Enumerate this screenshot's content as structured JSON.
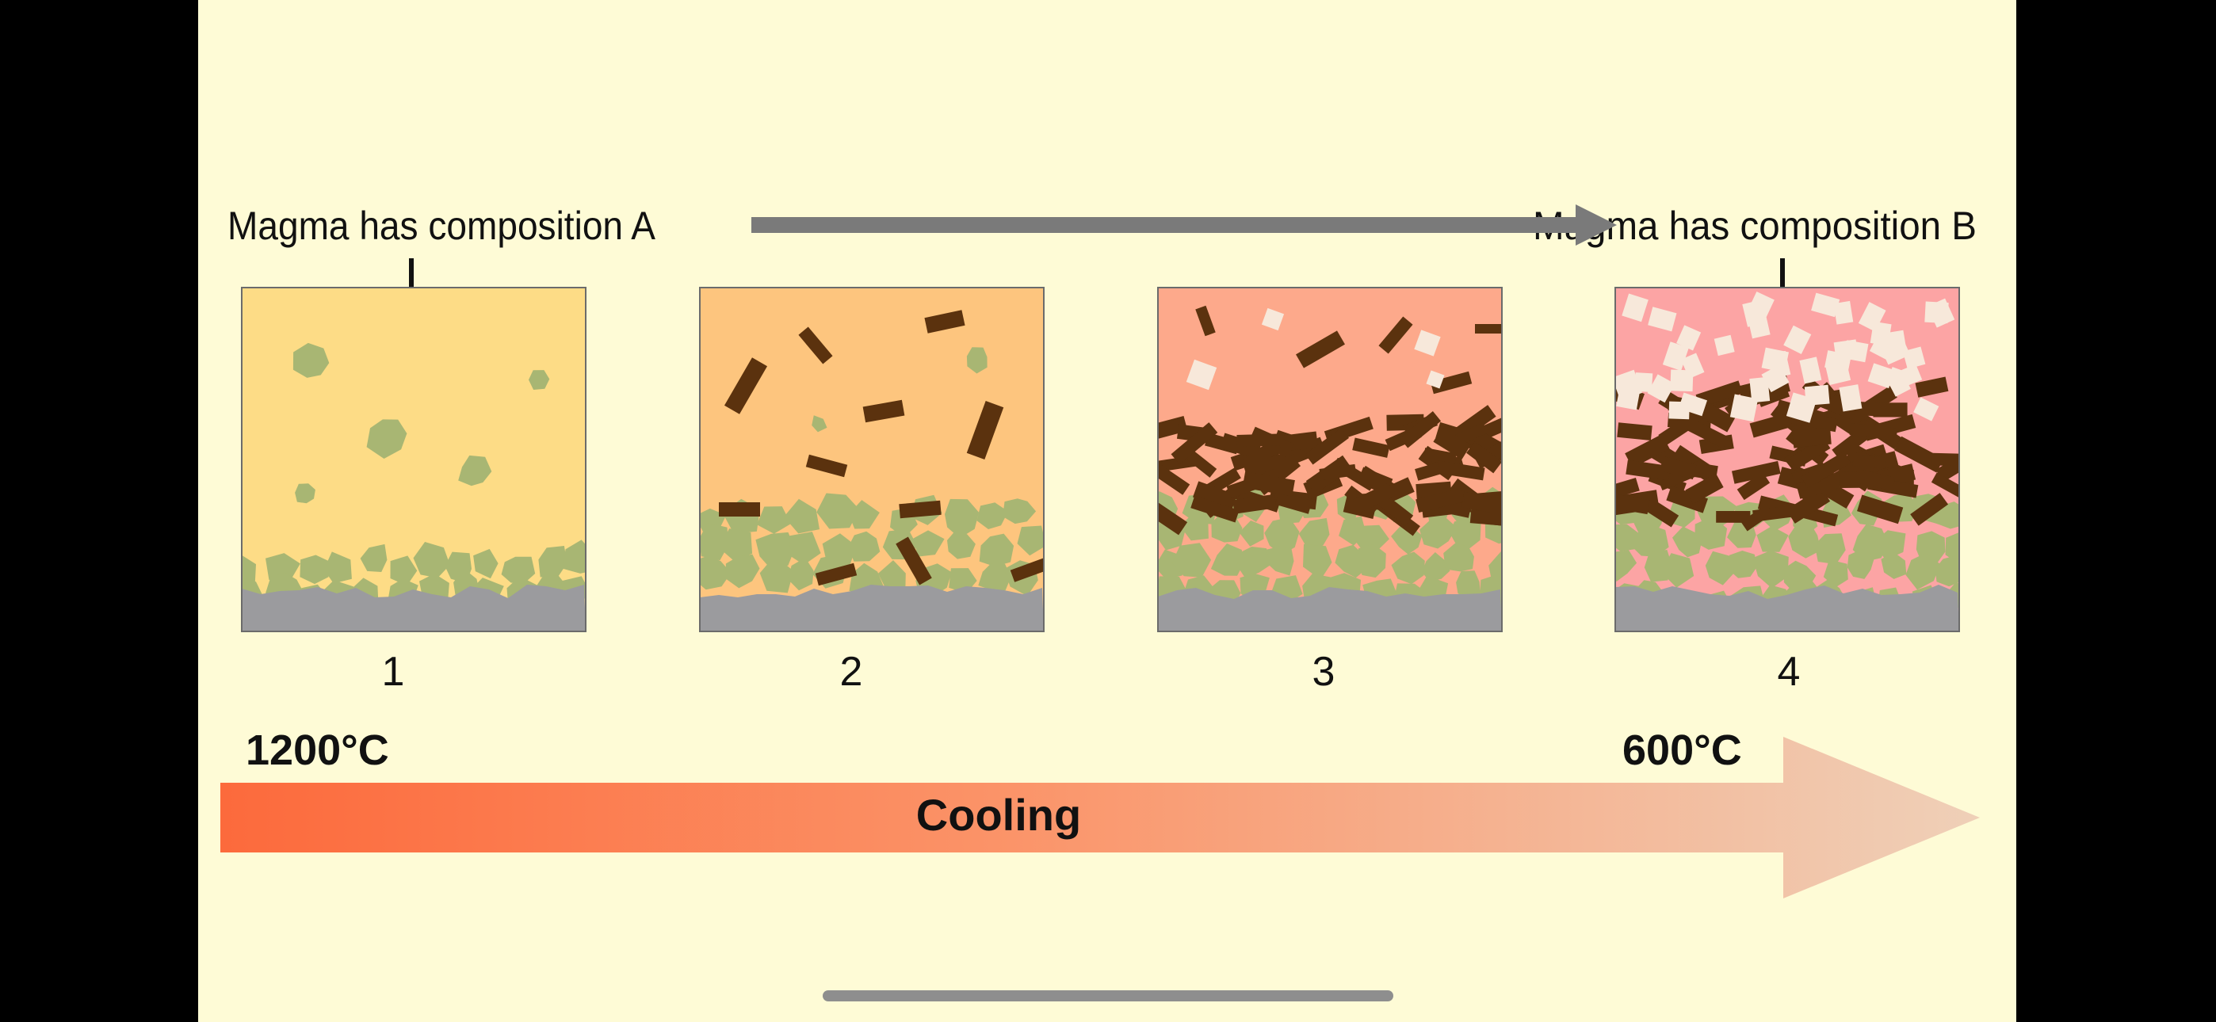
{
  "diagram": {
    "label_top_left": "Magma has composition A",
    "label_top_right": "Magma has composition B",
    "panels": [
      {
        "number": "1",
        "magma_color": "#FDDC86"
      },
      {
        "number": "2",
        "magma_color": "#FDC57E"
      },
      {
        "number": "3",
        "magma_color": "#FDA98B"
      },
      {
        "number": "4",
        "magma_color": "#FCA4A4"
      }
    ],
    "temperature_start": "1200°C",
    "temperature_end": "600°C",
    "cooling_label": "Cooling",
    "colors": {
      "background": "#FEFBD6",
      "green_crystal": "#A8B673",
      "brown_crystal": "#5B320E",
      "white_crystal": "#F7E8DA",
      "floor": "#9B9B9E",
      "gray_arrow": "#7A7A7A",
      "cooling_start": "#FC6A3C",
      "cooling_end": "#EFCCB2"
    }
  }
}
